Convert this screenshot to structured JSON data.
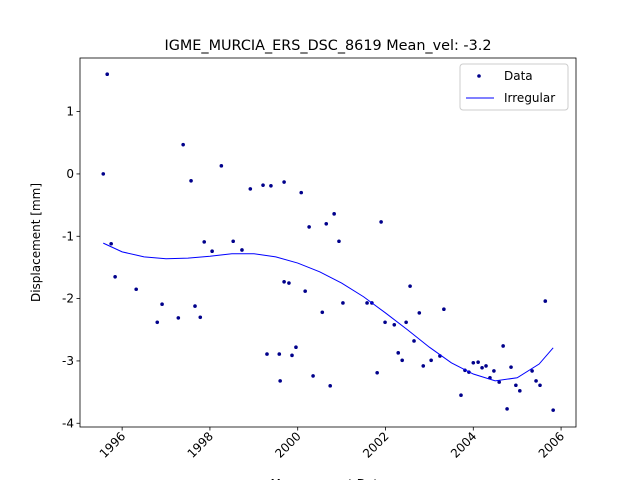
{
  "chart_data": {
    "type": "scatter-line",
    "title": "IGME_MURCIA_ERS_DSC_8619    Mean_vel: -3.2",
    "xlabel": "Measurement Date",
    "ylabel": "Displacement [mm]",
    "xlim": [
      1995.04,
      2006.34
    ],
    "ylim": [
      -4.06,
      1.86
    ],
    "xticks": [
      1996,
      1998,
      2000,
      2002,
      2004,
      2006
    ],
    "yticks": [
      -4,
      -3,
      -2,
      -1,
      0,
      1
    ],
    "legend": "upper right",
    "series": [
      {
        "name": "Data",
        "color": "#00008b",
        "style": "points",
        "x": [
          1995.57,
          1995.66,
          1995.75,
          1995.84,
          1996.32,
          1996.8,
          1996.91,
          1997.28,
          1997.39,
          1997.57,
          1997.66,
          1997.78,
          1997.87,
          1998.05,
          1998.26,
          1998.53,
          1998.73,
          1998.92,
          1999.21,
          1999.3,
          1999.39,
          1999.58,
          1999.6,
          1999.69,
          1999.69,
          1999.8,
          1999.87,
          1999.96,
          2000.08,
          2000.17,
          2000.26,
          2000.35,
          2000.56,
          2000.65,
          2000.74,
          2000.83,
          2000.94,
          2001.03,
          2001.58,
          2001.69,
          2001.81,
          2001.9,
          2001.99,
          2002.2,
          2002.29,
          2002.38,
          2002.47,
          2002.56,
          2002.65,
          2002.77,
          2002.86,
          2003.04,
          2003.24,
          2003.33,
          2003.72,
          2003.81,
          2003.9,
          2004.0,
          2004.11,
          2004.2,
          2004.29,
          2004.38,
          2004.47,
          2004.59,
          2004.68,
          2004.77,
          2004.86,
          2004.97,
          2005.06,
          2005.34,
          2005.43,
          2005.52,
          2005.64,
          2005.82
        ],
        "values": [
          0,
          1.6,
          -1.12,
          -1.65,
          -1.85,
          -2.38,
          -2.09,
          -2.31,
          0.47,
          -0.11,
          -2.12,
          -2.3,
          -1.09,
          -1.24,
          0.13,
          -1.08,
          -1.22,
          -0.24,
          -0.18,
          -2.89,
          -0.19,
          -2.89,
          -3.32,
          -0.13,
          -1.73,
          -1.75,
          -2.91,
          -2.78,
          -0.3,
          -1.88,
          -0.85,
          -3.24,
          -2.22,
          -0.8,
          -3.4,
          -0.64,
          -1.08,
          -2.07,
          -2.07,
          -2.07,
          -3.19,
          -0.77,
          -2.38,
          -2.42,
          -2.87,
          -2.99,
          -2.38,
          -1.8,
          -2.68,
          -2.23,
          -3.08,
          -2.99,
          -2.92,
          -2.17,
          -3.55,
          -3.15,
          -3.18,
          -3.03,
          -3.02,
          -3.11,
          -3.08,
          -3.27,
          -3.16,
          -3.34,
          -2.76,
          -3.77,
          -3.1,
          -3.39,
          -3.48,
          -3.16,
          -3.32,
          -3.39,
          -2.04,
          -3.79
        ]
      },
      {
        "name": "Irregular",
        "color": "#0000ff",
        "style": "line",
        "x": [
          1995.57,
          1996.0,
          1996.5,
          1997.0,
          1997.5,
          1998.0,
          1998.5,
          1999.0,
          1999.5,
          2000.0,
          2000.5,
          2001.0,
          2001.5,
          2002.0,
          2002.5,
          2003.0,
          2003.5,
          2004.0,
          2004.5,
          2005.0,
          2005.5,
          2005.82
        ],
        "values": [
          -1.11,
          -1.25,
          -1.33,
          -1.36,
          -1.35,
          -1.32,
          -1.28,
          -1.28,
          -1.33,
          -1.43,
          -1.57,
          -1.75,
          -1.97,
          -2.23,
          -2.5,
          -2.78,
          -3.03,
          -3.21,
          -3.32,
          -3.27,
          -3.05,
          -2.79
        ]
      }
    ]
  }
}
